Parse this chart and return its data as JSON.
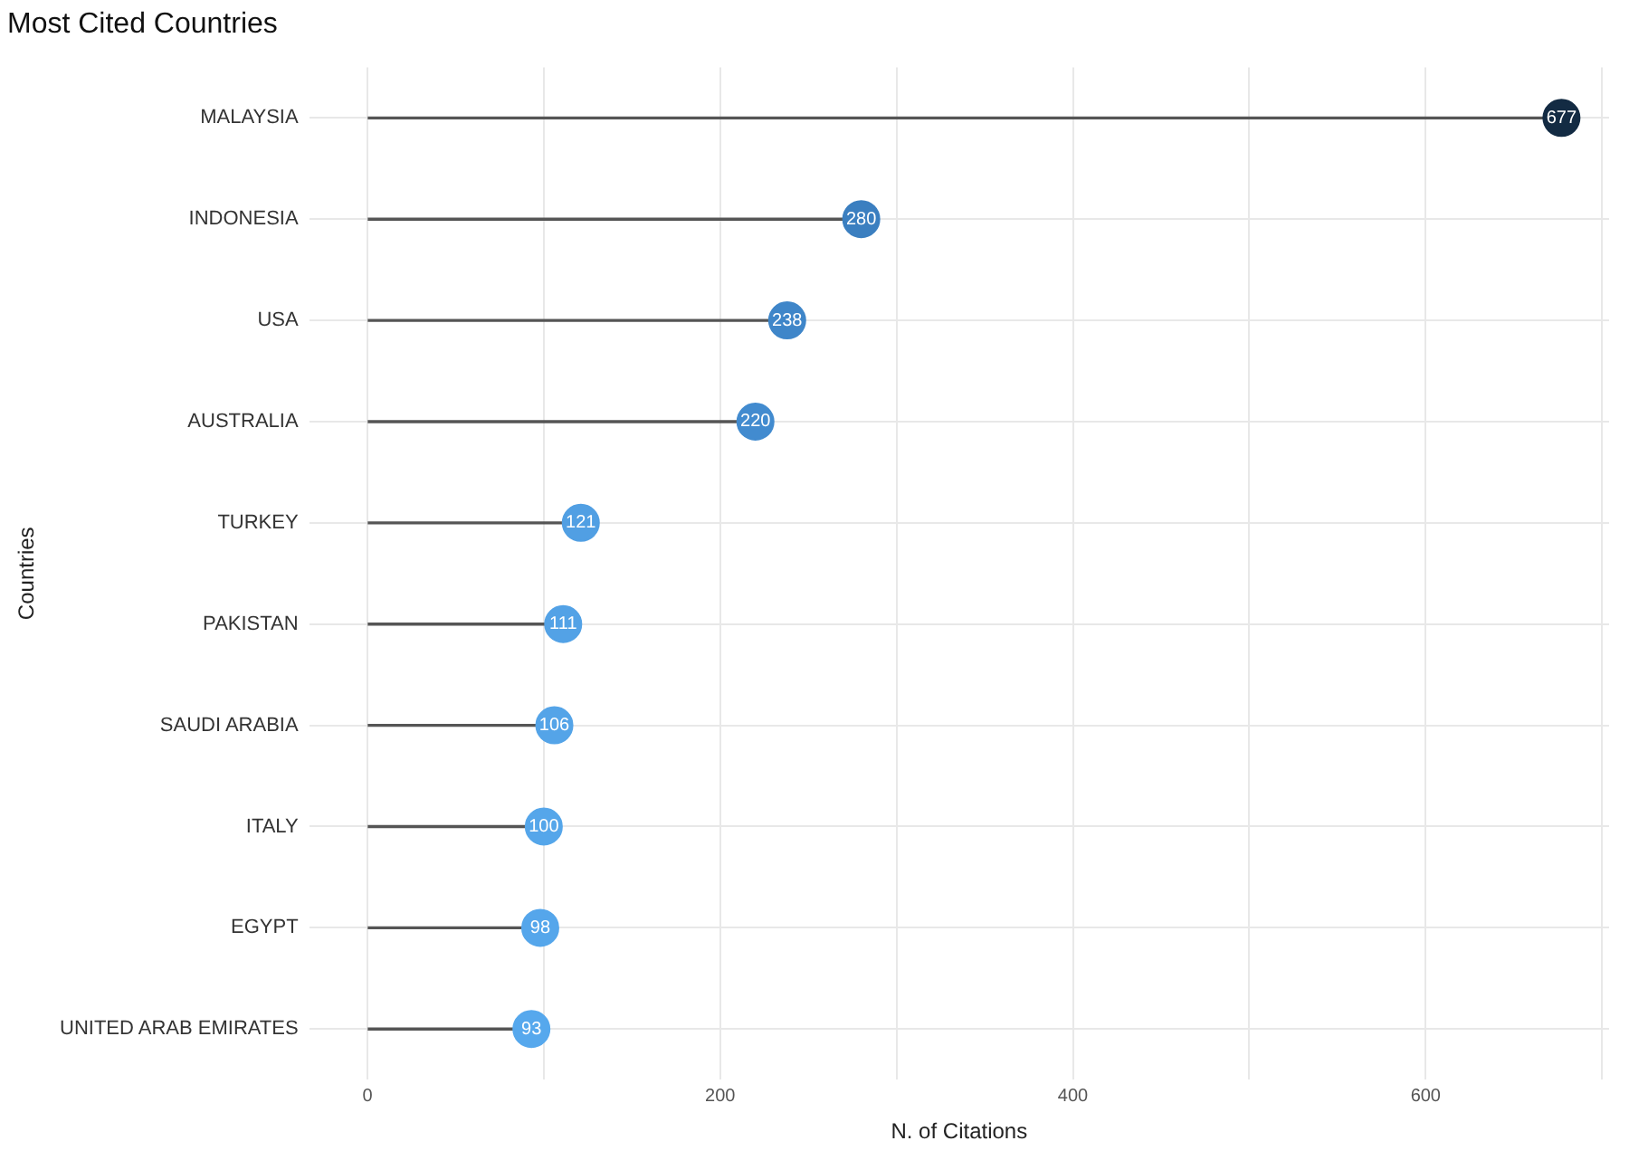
{
  "chart_data": {
    "type": "lollipop",
    "orientation": "horizontal",
    "title": "Most Cited Countries",
    "xlabel": "N. of Citations",
    "ylabel": "Countries",
    "categories": [
      "MALAYSIA",
      "INDONESIA",
      "USA",
      "AUSTRALIA",
      "TURKEY",
      "PAKISTAN",
      "SAUDI ARABIA",
      "ITALY",
      "EGYPT",
      "UNITED ARAB EMIRATES"
    ],
    "values": [
      677,
      280,
      238,
      220,
      121,
      111,
      106,
      100,
      98,
      93
    ],
    "colors": [
      "#132b43",
      "#3b7fc0",
      "#3f86c9",
      "#428bcf",
      "#519fe3",
      "#53a2e6",
      "#54a4e8",
      "#55a6ea",
      "#55a6eb",
      "#56a8ed"
    ],
    "xlim": [
      -33,
      704
    ],
    "xticks": [
      0,
      {
        "value": 100,
        "label": null
      },
      200,
      {
        "value": 300,
        "label": null
      },
      400,
      {
        "value": 500,
        "label": null
      },
      600,
      {
        "value": 700,
        "label": null
      }
    ],
    "grid": true,
    "data_labels": true,
    "marker": "circle",
    "legend": false
  }
}
